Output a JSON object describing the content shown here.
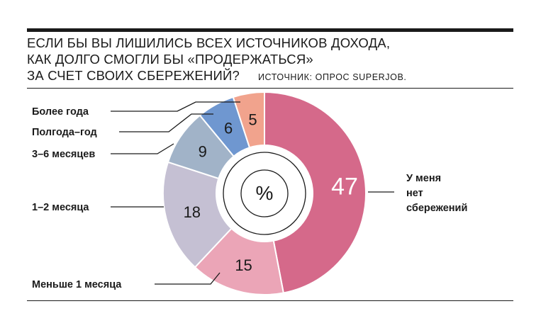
{
  "title": {
    "line1": "Если бы вы лишились всех источников дохода,",
    "line2": "как долго смогли бы «продержаться»",
    "line3": "за счет своих сбережений?",
    "source": "Источник: опрос SuperJob."
  },
  "center_label": "%",
  "chart_data": {
    "type": "pie",
    "title": "Если бы вы лишились всех источников дохода, как долго смогли бы «продержаться» за счет своих сбережений?",
    "unit": "%",
    "slices": [
      {
        "label": "У меня нет сбережений",
        "value": 47,
        "color": "#d5698a"
      },
      {
        "label": "Меньше 1 месяца",
        "value": 15,
        "color": "#eba5b7"
      },
      {
        "label": "1–2 месяца",
        "value": 18,
        "color": "#c5c0d3"
      },
      {
        "label": "3–6 месяцев",
        "value": 9,
        "color": "#a1b3c8"
      },
      {
        "label": "Полгода–год",
        "value": 6,
        "color": "#6f97d0"
      },
      {
        "label": "Более года",
        "value": 5,
        "color": "#f1a38d"
      }
    ]
  }
}
